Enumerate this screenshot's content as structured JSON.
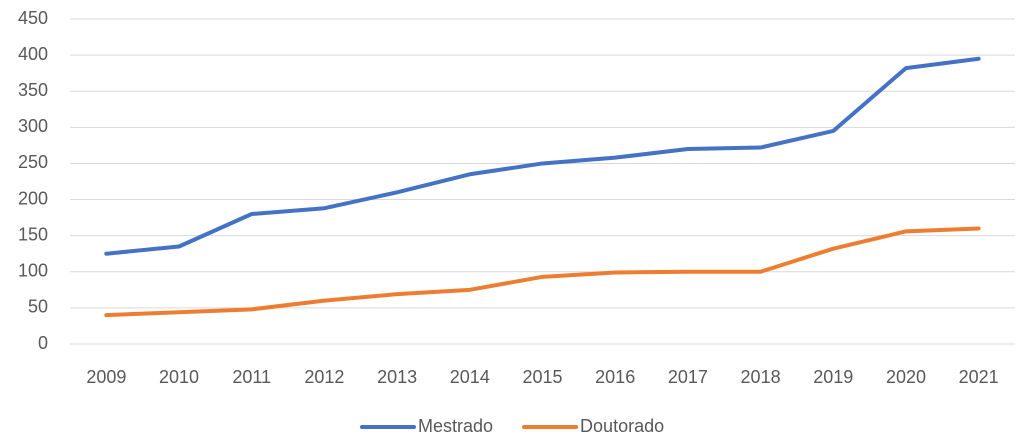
{
  "chart_data": {
    "type": "line",
    "categories": [
      "2009",
      "2010",
      "2011",
      "2012",
      "2013",
      "2014",
      "2015",
      "2016",
      "2017",
      "2018",
      "2019",
      "2020",
      "2021"
    ],
    "series": [
      {
        "name": "Mestrado",
        "color": "#4472c4",
        "values": [
          125,
          135,
          180,
          188,
          210,
          235,
          250,
          258,
          270,
          272,
          295,
          382,
          395
        ]
      },
      {
        "name": "Doutorado",
        "color": "#ed7d31",
        "values": [
          40,
          44,
          48,
          60,
          69,
          75,
          93,
          99,
          100,
          100,
          132,
          156,
          160
        ]
      }
    ],
    "ylim": [
      0,
      450
    ],
    "yticks": [
      0,
      50,
      100,
      150,
      200,
      250,
      300,
      350,
      400,
      450
    ],
    "grid": true,
    "legend": "bottom"
  }
}
